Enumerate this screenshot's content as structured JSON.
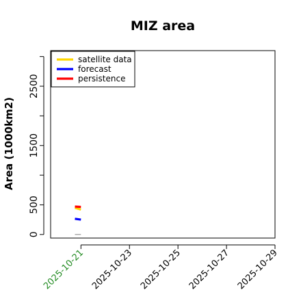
{
  "chart_data": {
    "type": "line",
    "title": "MIZ area",
    "xlabel": "",
    "ylabel": "Area (1000km2)",
    "xlim": [
      "2025-10-19T18:00",
      "2025-10-29T00:00"
    ],
    "ylim": [
      -60,
      3100
    ],
    "yticks": [
      0,
      500,
      1500,
      2500
    ],
    "ytick_labels": [
      "0",
      "500",
      "1500",
      "2500"
    ],
    "ytick_minor": [
      1000,
      2000,
      3000
    ],
    "xticks": [
      "2025-10-21",
      "2025-10-23",
      "2025-10-25",
      "2025-10-27",
      "2025-10-29"
    ],
    "xtick_colors": [
      "#228B22",
      "#000000",
      "#000000",
      "#000000",
      "#000000"
    ],
    "legend_position": "top-left",
    "grid": false,
    "series": [
      {
        "name": "satellite data",
        "color": "#FFD700",
        "x": [
          "2025-10-20T18:00",
          "2025-10-21T00:00"
        ],
        "y": [
          450,
          420
        ]
      },
      {
        "name": "forecast",
        "color": "#0000FF",
        "x": [
          "2025-10-20T18:00",
          "2025-10-21T00:00"
        ],
        "y": [
          265,
          250
        ]
      },
      {
        "name": "persistence",
        "color": "#FF0000",
        "x": [
          "2025-10-20T18:00",
          "2025-10-21T00:00"
        ],
        "y": [
          470,
          465
        ]
      },
      {
        "name": "",
        "color": "#808080",
        "x": [
          "2025-10-20T18:00",
          "2025-10-21T00:00"
        ],
        "y": [
          0,
          0
        ]
      }
    ]
  }
}
